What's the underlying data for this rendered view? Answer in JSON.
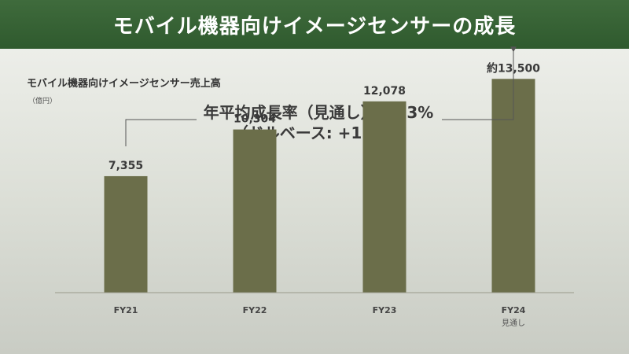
{
  "header": {
    "title": "モバイル機器向けイメージセンサーの成長"
  },
  "chart_data": {
    "type": "bar",
    "title": "モバイル機器向けイメージセンサー売上高",
    "unit": "（億円）",
    "categories": [
      "FY21",
      "FY22",
      "FY23",
      "FY24"
    ],
    "category_sublabels": [
      "",
      "",
      "",
      "見通し"
    ],
    "values": [
      7355,
      10304,
      12078,
      13500
    ],
    "value_labels": [
      "7,355",
      "10,304",
      "12,078",
      "約13,500"
    ],
    "ylim": [
      0,
      15500
    ],
    "grid": false,
    "bar_color": "#6b6e4a",
    "annotation": {
      "line1": "年平均成長率（見通し）:+23%",
      "line2": "（ドルベース: +11%）"
    }
  }
}
